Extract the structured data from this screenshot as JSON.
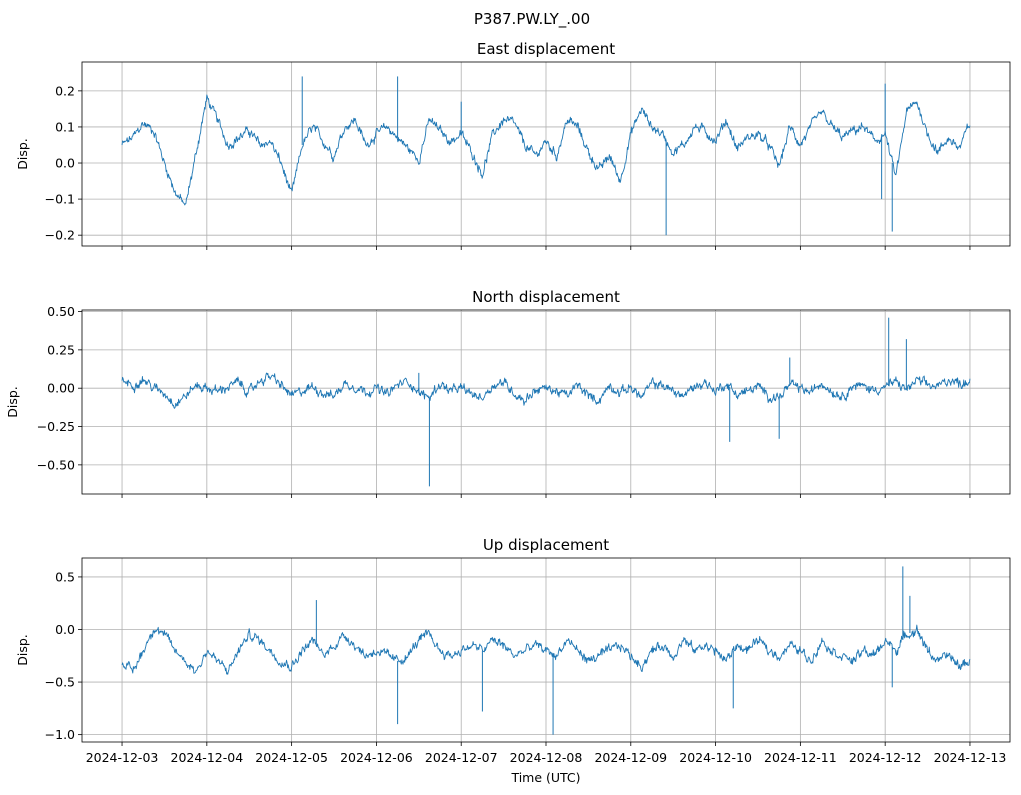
{
  "figure": {
    "suptitle": "P387.PW.LY_.00",
    "xlabel": "Time (UTC)",
    "x_ticks": [
      "2024-12-03",
      "2024-12-04",
      "2024-12-05",
      "2024-12-06",
      "2024-12-07",
      "2024-12-08",
      "2024-12-09",
      "2024-12-10",
      "2024-12-11",
      "2024-12-12",
      "2024-12-13"
    ],
    "line_color": "#1f77b4",
    "grid_color": "#b0b0b0"
  },
  "chart_data": [
    {
      "type": "line",
      "title": "East displacement",
      "ylabel": "Disp.",
      "xlim": [
        "2024-12-02T12:40",
        "2024-12-13T11:20"
      ],
      "ylim": [
        -0.23,
        0.28
      ],
      "yticks": [
        -0.2,
        -0.1,
        0.0,
        0.1,
        0.2
      ],
      "ytick_labels": [
        "−0.2",
        "−0.1",
        "0.0",
        "0.1",
        "0.2"
      ],
      "grid": true,
      "series": [
        {
          "x": [
            "2024-12-03T00:00",
            "2024-12-03T03:00",
            "2024-12-03T06:00",
            "2024-12-03T09:00",
            "2024-12-03T12:00",
            "2024-12-03T15:00",
            "2024-12-03T18:00",
            "2024-12-03T21:00",
            "2024-12-04T00:00",
            "2024-12-04T03:00",
            "2024-12-04T06:00",
            "2024-12-04T09:00",
            "2024-12-04T12:00",
            "2024-12-04T15:00",
            "2024-12-04T18:00",
            "2024-12-04T21:00",
            "2024-12-05T00:00",
            "2024-12-05T03:00",
            "2024-12-05T06:00",
            "2024-12-05T09:00",
            "2024-12-05T12:00",
            "2024-12-05T15:00",
            "2024-12-05T18:00",
            "2024-12-05T21:00",
            "2024-12-06T00:00",
            "2024-12-06T03:00",
            "2024-12-06T06:00",
            "2024-12-06T09:00",
            "2024-12-06T12:00",
            "2024-12-06T15:00",
            "2024-12-06T18:00",
            "2024-12-06T21:00",
            "2024-12-07T00:00",
            "2024-12-07T03:00",
            "2024-12-07T06:00",
            "2024-12-07T09:00",
            "2024-12-07T12:00",
            "2024-12-07T15:00",
            "2024-12-07T18:00",
            "2024-12-07T21:00",
            "2024-12-08T00:00",
            "2024-12-08T03:00",
            "2024-12-08T06:00",
            "2024-12-08T09:00",
            "2024-12-08T12:00",
            "2024-12-08T15:00",
            "2024-12-08T18:00",
            "2024-12-08T21:00",
            "2024-12-09T00:00",
            "2024-12-09T03:00",
            "2024-12-09T06:00",
            "2024-12-09T09:00",
            "2024-12-09T12:00",
            "2024-12-09T15:00",
            "2024-12-09T18:00",
            "2024-12-09T21:00",
            "2024-12-10T00:00",
            "2024-12-10T03:00",
            "2024-12-10T06:00",
            "2024-12-10T09:00",
            "2024-12-10T12:00",
            "2024-12-10T15:00",
            "2024-12-10T18:00",
            "2024-12-10T21:00",
            "2024-12-11T00:00",
            "2024-12-11T03:00",
            "2024-12-11T06:00",
            "2024-12-11T09:00",
            "2024-12-11T12:00",
            "2024-12-11T15:00",
            "2024-12-11T18:00",
            "2024-12-11T21:00",
            "2024-12-12T00:00",
            "2024-12-12T03:00",
            "2024-12-12T06:00",
            "2024-12-12T09:00",
            "2024-12-12T12:00",
            "2024-12-12T15:00",
            "2024-12-12T18:00",
            "2024-12-12T21:00",
            "2024-12-13T00:00"
          ],
          "values": [
            0.05,
            0.07,
            0.11,
            0.09,
            0.0,
            -0.08,
            -0.12,
            0.03,
            0.18,
            0.12,
            0.05,
            0.07,
            0.09,
            0.05,
            0.06,
            0.0,
            -0.09,
            0.05,
            0.1,
            0.06,
            0.02,
            0.1,
            0.12,
            0.05,
            0.08,
            0.1,
            0.07,
            0.04,
            0.01,
            0.12,
            0.09,
            0.06,
            0.08,
            0.03,
            -0.03,
            0.08,
            0.12,
            0.11,
            0.05,
            0.02,
            0.06,
            0.02,
            0.12,
            0.1,
            0.03,
            -0.02,
            0.02,
            -0.05,
            0.08,
            0.15,
            0.1,
            0.08,
            0.03,
            0.05,
            0.1,
            0.09,
            0.06,
            0.12,
            0.04,
            0.07,
            0.08,
            0.05,
            -0.01,
            0.1,
            0.05,
            0.1,
            0.14,
            0.1,
            0.07,
            0.09,
            0.1,
            0.06,
            0.08,
            -0.04,
            0.14,
            0.17,
            0.08,
            0.03,
            0.07,
            0.04,
            0.11
          ],
          "spikes": [
            [
              "2024-12-05T03:00",
              0.24
            ],
            [
              "2024-12-06T06:00",
              0.24
            ],
            [
              "2024-12-09T10:00",
              -0.2
            ],
            [
              "2024-12-12T00:00",
              0.22
            ],
            [
              "2024-12-12T02:00",
              -0.19
            ],
            [
              "2024-12-11T23:00",
              -0.1
            ],
            [
              "2024-12-07T00:00",
              0.17
            ]
          ]
        }
      ]
    },
    {
      "type": "line",
      "title": "North displacement",
      "ylabel": "Disp.",
      "xlim": [
        "2024-12-02T12:40",
        "2024-12-13T11:20"
      ],
      "ylim": [
        -0.69,
        0.51
      ],
      "yticks": [
        -0.5,
        -0.25,
        0.0,
        0.25,
        0.5
      ],
      "ytick_labels": [
        "−0.50",
        "−0.25",
        "0.00",
        "0.25",
        "0.50"
      ],
      "grid": true,
      "series": [
        {
          "x": [
            "2024-12-03T00:00",
            "2024-12-03T03:00",
            "2024-12-03T06:00",
            "2024-12-03T09:00",
            "2024-12-03T12:00",
            "2024-12-03T15:00",
            "2024-12-03T18:00",
            "2024-12-03T21:00",
            "2024-12-04T00:00",
            "2024-12-04T03:00",
            "2024-12-04T06:00",
            "2024-12-04T09:00",
            "2024-12-04T12:00",
            "2024-12-04T15:00",
            "2024-12-04T18:00",
            "2024-12-04T21:00",
            "2024-12-05T00:00",
            "2024-12-05T03:00",
            "2024-12-05T06:00",
            "2024-12-05T09:00",
            "2024-12-05T12:00",
            "2024-12-05T15:00",
            "2024-12-05T18:00",
            "2024-12-05T21:00",
            "2024-12-06T00:00",
            "2024-12-06T03:00",
            "2024-12-06T06:00",
            "2024-12-06T09:00",
            "2024-12-06T12:00",
            "2024-12-06T15:00",
            "2024-12-06T18:00",
            "2024-12-06T21:00",
            "2024-12-07T00:00",
            "2024-12-07T03:00",
            "2024-12-07T06:00",
            "2024-12-07T09:00",
            "2024-12-07T12:00",
            "2024-12-07T15:00",
            "2024-12-07T18:00",
            "2024-12-07T21:00",
            "2024-12-08T00:00",
            "2024-12-08T03:00",
            "2024-12-08T06:00",
            "2024-12-08T09:00",
            "2024-12-08T12:00",
            "2024-12-08T15:00",
            "2024-12-08T18:00",
            "2024-12-08T21:00",
            "2024-12-09T00:00",
            "2024-12-09T03:00",
            "2024-12-09T06:00",
            "2024-12-09T09:00",
            "2024-12-09T12:00",
            "2024-12-09T15:00",
            "2024-12-09T18:00",
            "2024-12-09T21:00",
            "2024-12-10T00:00",
            "2024-12-10T03:00",
            "2024-12-10T06:00",
            "2024-12-10T09:00",
            "2024-12-10T12:00",
            "2024-12-10T15:00",
            "2024-12-10T18:00",
            "2024-12-10T21:00",
            "2024-12-11T00:00",
            "2024-12-11T03:00",
            "2024-12-11T06:00",
            "2024-12-11T09:00",
            "2024-12-11T12:00",
            "2024-12-11T15:00",
            "2024-12-11T18:00",
            "2024-12-11T21:00",
            "2024-12-12T00:00",
            "2024-12-12T03:00",
            "2024-12-12T06:00",
            "2024-12-12T09:00",
            "2024-12-12T12:00",
            "2024-12-12T15:00",
            "2024-12-12T18:00",
            "2024-12-12T21:00",
            "2024-12-13T00:00"
          ],
          "values": [
            0.05,
            0.02,
            0.06,
            0.0,
            -0.03,
            -0.1,
            -0.05,
            0.02,
            0.0,
            -0.02,
            0.01,
            0.04,
            -0.03,
            0.05,
            0.08,
            0.02,
            -0.05,
            -0.02,
            0.01,
            -0.03,
            -0.05,
            0.03,
            0.01,
            -0.02,
            0.0,
            -0.04,
            0.02,
            0.05,
            -0.03,
            -0.06,
            0.03,
            -0.02,
            0.0,
            -0.04,
            -0.06,
            0.02,
            0.04,
            -0.03,
            -0.08,
            -0.01,
            0.0,
            -0.02,
            -0.05,
            0.02,
            -0.05,
            -0.08,
            0.02,
            -0.03,
            0.01,
            -0.06,
            0.03,
            0.02,
            -0.02,
            -0.05,
            0.01,
            0.04,
            -0.02,
            0.03,
            -0.04,
            -0.02,
            0.01,
            -0.05,
            -0.06,
            0.02,
            0.0,
            -0.03,
            0.04,
            -0.02,
            -0.05,
            0.02,
            0.01,
            -0.01,
            0.01,
            0.04,
            -0.01,
            0.05,
            0.02,
            0.01,
            0.06,
            0.03,
            0.05
          ],
          "spikes": [
            [
              "2024-12-06T15:00",
              -0.64
            ],
            [
              "2024-12-12T01:00",
              0.46
            ],
            [
              "2024-12-12T06:00",
              0.32
            ],
            [
              "2024-12-10T04:00",
              -0.35
            ],
            [
              "2024-12-10T18:00",
              -0.33
            ],
            [
              "2024-12-10T21:00",
              0.2
            ],
            [
              "2024-12-06T12:00",
              0.1
            ]
          ]
        }
      ]
    },
    {
      "type": "line",
      "title": "Up displacement",
      "ylabel": "Disp.",
      "xlim": [
        "2024-12-02T12:40",
        "2024-12-13T11:20"
      ],
      "ylim": [
        -1.07,
        0.68
      ],
      "yticks": [
        -1.0,
        -0.5,
        0.0,
        0.5
      ],
      "ytick_labels": [
        "−1.0",
        "−0.5",
        "0.0",
        "0.5"
      ],
      "grid": true,
      "series": [
        {
          "x": [
            "2024-12-03T00:00",
            "2024-12-03T03:00",
            "2024-12-03T06:00",
            "2024-12-03T09:00",
            "2024-12-03T12:00",
            "2024-12-03T15:00",
            "2024-12-03T18:00",
            "2024-12-03T21:00",
            "2024-12-04T00:00",
            "2024-12-04T03:00",
            "2024-12-04T06:00",
            "2024-12-04T09:00",
            "2024-12-04T12:00",
            "2024-12-04T15:00",
            "2024-12-04T18:00",
            "2024-12-04T21:00",
            "2024-12-05T00:00",
            "2024-12-05T03:00",
            "2024-12-05T06:00",
            "2024-12-05T09:00",
            "2024-12-05T12:00",
            "2024-12-05T15:00",
            "2024-12-05T18:00",
            "2024-12-05T21:00",
            "2024-12-06T00:00",
            "2024-12-06T03:00",
            "2024-12-06T06:00",
            "2024-12-06T09:00",
            "2024-12-06T12:00",
            "2024-12-06T15:00",
            "2024-12-06T18:00",
            "2024-12-06T21:00",
            "2024-12-07T00:00",
            "2024-12-07T03:00",
            "2024-12-07T06:00",
            "2024-12-07T09:00",
            "2024-12-07T12:00",
            "2024-12-07T15:00",
            "2024-12-07T18:00",
            "2024-12-07T21:00",
            "2024-12-08T00:00",
            "2024-12-08T03:00",
            "2024-12-08T06:00",
            "2024-12-08T09:00",
            "2024-12-08T12:00",
            "2024-12-08T15:00",
            "2024-12-08T18:00",
            "2024-12-08T21:00",
            "2024-12-09T00:00",
            "2024-12-09T03:00",
            "2024-12-09T06:00",
            "2024-12-09T09:00",
            "2024-12-09T12:00",
            "2024-12-09T15:00",
            "2024-12-09T18:00",
            "2024-12-09T21:00",
            "2024-12-10T00:00",
            "2024-12-10T03:00",
            "2024-12-10T06:00",
            "2024-12-10T09:00",
            "2024-12-10T12:00",
            "2024-12-10T15:00",
            "2024-12-10T18:00",
            "2024-12-10T21:00",
            "2024-12-11T00:00",
            "2024-12-11T03:00",
            "2024-12-11T06:00",
            "2024-12-11T09:00",
            "2024-12-11T12:00",
            "2024-12-11T15:00",
            "2024-12-11T18:00",
            "2024-12-11T21:00",
            "2024-12-12T00:00",
            "2024-12-12T03:00",
            "2024-12-12T06:00",
            "2024-12-12T09:00",
            "2024-12-12T12:00",
            "2024-12-12T15:00",
            "2024-12-12T18:00",
            "2024-12-12T21:00",
            "2024-12-13T00:00"
          ],
          "values": [
            -0.3,
            -0.4,
            -0.2,
            0.02,
            -0.05,
            -0.2,
            -0.3,
            -0.4,
            -0.2,
            -0.3,
            -0.4,
            -0.2,
            -0.05,
            -0.1,
            -0.2,
            -0.3,
            -0.35,
            -0.2,
            -0.1,
            -0.25,
            -0.15,
            -0.05,
            -0.15,
            -0.25,
            -0.2,
            -0.25,
            -0.3,
            -0.25,
            -0.1,
            -0.05,
            -0.2,
            -0.25,
            -0.2,
            -0.15,
            -0.2,
            -0.1,
            -0.15,
            -0.25,
            -0.2,
            -0.15,
            -0.2,
            -0.25,
            -0.1,
            -0.2,
            -0.3,
            -0.25,
            -0.2,
            -0.15,
            -0.25,
            -0.35,
            -0.2,
            -0.15,
            -0.25,
            -0.1,
            -0.2,
            -0.15,
            -0.2,
            -0.3,
            -0.15,
            -0.2,
            -0.1,
            -0.2,
            -0.25,
            -0.15,
            -0.2,
            -0.3,
            -0.1,
            -0.2,
            -0.25,
            -0.3,
            -0.2,
            -0.25,
            -0.1,
            -0.2,
            -0.05,
            0.0,
            -0.2,
            -0.3,
            -0.25,
            -0.35,
            -0.3
          ],
          "spikes": [
            [
              "2024-12-06T06:00",
              -0.9
            ],
            [
              "2024-12-08T02:00",
              -1.0
            ],
            [
              "2024-12-07T06:00",
              -0.78
            ],
            [
              "2024-12-10T05:00",
              -0.75
            ],
            [
              "2024-12-12T05:00",
              0.6
            ],
            [
              "2024-12-12T07:00",
              0.32
            ],
            [
              "2024-12-12T02:00",
              -0.55
            ],
            [
              "2024-12-05T07:00",
              0.28
            ]
          ]
        }
      ]
    }
  ]
}
